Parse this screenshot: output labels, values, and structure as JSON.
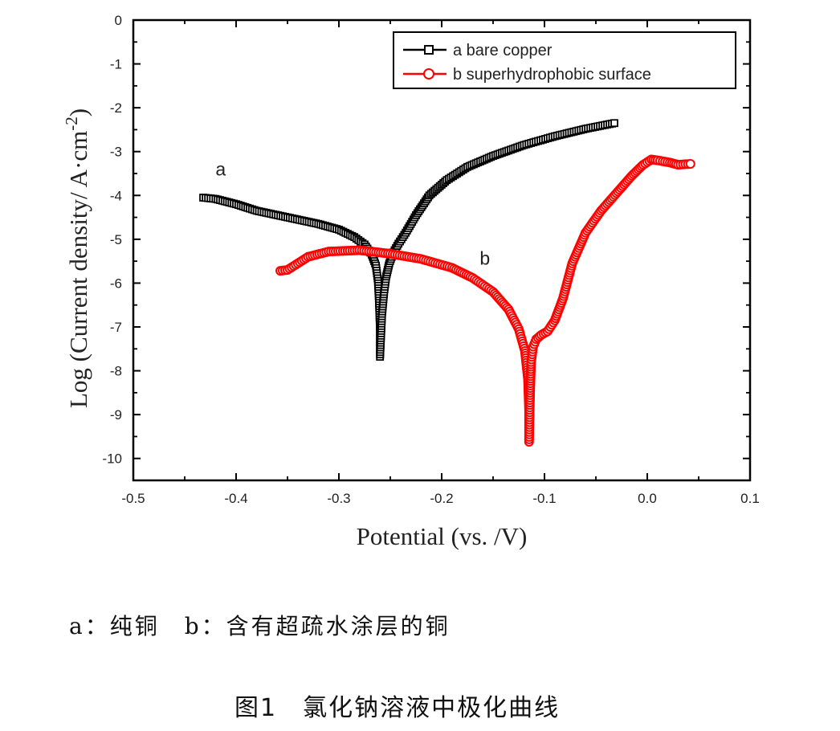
{
  "chart_data": {
    "type": "line",
    "title": "",
    "xlabel": "Potential (vs. /V)",
    "ylabel_main": "Log (Current density/ A·cm",
    "ylabel_sup": "-2",
    "ylabel_close": ")",
    "xlim": [
      -0.5,
      0.1
    ],
    "ylim": [
      -10.5,
      0
    ],
    "xticks": [
      -0.5,
      -0.4,
      -0.3,
      -0.2,
      -0.1,
      0.0,
      0.1
    ],
    "xtick_labels": [
      "-0.5",
      "-0.4",
      "-0.3",
      "-0.2",
      "-0.1",
      "0.0",
      "0.1"
    ],
    "yticks": [
      0,
      -1,
      -2,
      -3,
      -4,
      -5,
      -6,
      -7,
      -8,
      -9,
      -10
    ],
    "ytick_labels": [
      "0",
      "-1",
      "-2",
      "-3",
      "-4",
      "-5",
      "-6",
      "-7",
      "-8",
      "-9",
      "-10"
    ],
    "grid": false,
    "legend_position": "top-right",
    "series": [
      {
        "name": "a bare copper",
        "label": "a",
        "color": "#000000",
        "marker": "square",
        "x": [
          -0.432,
          -0.42,
          -0.4,
          -0.38,
          -0.35,
          -0.32,
          -0.3,
          -0.285,
          -0.275,
          -0.268,
          -0.264,
          -0.262,
          -0.261,
          -0.26,
          -0.26,
          -0.259,
          -0.258,
          -0.256,
          -0.254,
          -0.251,
          -0.247,
          -0.242,
          -0.235,
          -0.225,
          -0.212,
          -0.195,
          -0.175,
          -0.15,
          -0.12,
          -0.09,
          -0.06,
          -0.032
        ],
        "y": [
          -4.05,
          -4.08,
          -4.2,
          -4.35,
          -4.5,
          -4.65,
          -4.78,
          -4.95,
          -5.12,
          -5.35,
          -5.6,
          -5.95,
          -6.4,
          -7.05,
          -7.68,
          -7.2,
          -6.7,
          -6.2,
          -5.85,
          -5.55,
          -5.3,
          -5.1,
          -4.85,
          -4.45,
          -4.0,
          -3.65,
          -3.35,
          -3.1,
          -2.85,
          -2.65,
          -2.48,
          -2.35
        ]
      },
      {
        "name": "b superhydrophobic surface",
        "label": "b",
        "color": "#ff0000",
        "marker": "circle",
        "x": [
          -0.357,
          -0.35,
          -0.34,
          -0.33,
          -0.31,
          -0.28,
          -0.25,
          -0.22,
          -0.19,
          -0.17,
          -0.15,
          -0.135,
          -0.125,
          -0.119,
          -0.116,
          -0.115,
          -0.115,
          -0.114,
          -0.113,
          -0.111,
          -0.108,
          -0.103,
          -0.097,
          -0.09,
          -0.082,
          -0.073,
          -0.06,
          -0.045,
          -0.03,
          -0.015,
          -0.004,
          0.004,
          0.01,
          0.015,
          0.022,
          0.03,
          0.042
        ],
        "y": [
          -5.72,
          -5.7,
          -5.55,
          -5.4,
          -5.28,
          -5.25,
          -5.33,
          -5.45,
          -5.65,
          -5.88,
          -6.2,
          -6.6,
          -7.05,
          -7.55,
          -8.2,
          -8.9,
          -9.62,
          -8.5,
          -7.8,
          -7.45,
          -7.28,
          -7.18,
          -7.1,
          -6.85,
          -6.35,
          -5.55,
          -4.85,
          -4.35,
          -3.95,
          -3.55,
          -3.3,
          -3.18,
          -3.2,
          -3.22,
          -3.25,
          -3.3,
          -3.28
        ]
      }
    ]
  },
  "captions": {
    "legend_text": "a：纯铜　b：含有超疏水涂层的铜",
    "figure_title": "图1　氯化钠溶液中极化曲线"
  }
}
